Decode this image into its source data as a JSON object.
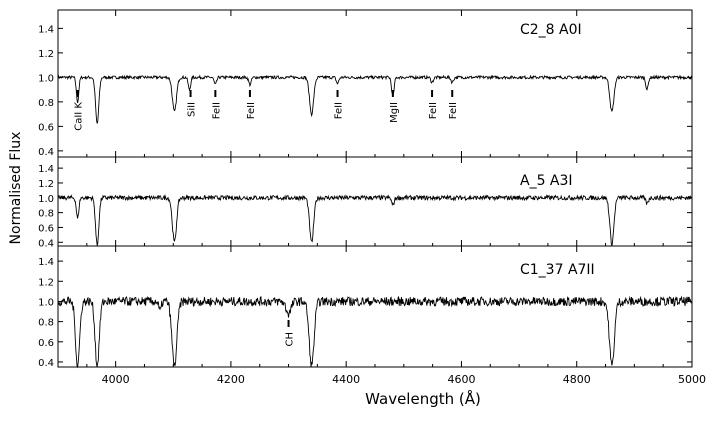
{
  "chart_data": {
    "type": "line",
    "xlabel": "Wavelength (Å)",
    "ylabel": "Normalised Flux",
    "xlim": [
      3900,
      5000
    ],
    "x_ticks": [
      "4000",
      "4200",
      "4400",
      "4600",
      "4800",
      "5000"
    ],
    "x_tick_values": [
      4000,
      4200,
      4400,
      4600,
      4800,
      5000
    ],
    "ylim": [
      0.35,
      1.6
    ],
    "y_ticks": [
      "0.4",
      "0.6",
      "0.8",
      "1.0",
      "1.2",
      "1.4"
    ],
    "y_tick_values": [
      0.4,
      0.6,
      0.8,
      1.0,
      1.2,
      1.4
    ],
    "panels": [
      {
        "label": "C2_8  A0I",
        "continuum": 1.0,
        "noise": 0.012,
        "lines": [
          [
            3934,
            0.8,
            3
          ],
          [
            3968,
            0.62,
            4
          ],
          [
            4102,
            0.72,
            5
          ],
          [
            4128,
            0.9,
            3
          ],
          [
            4173,
            0.94,
            3
          ],
          [
            4233,
            0.94,
            3
          ],
          [
            4340,
            0.7,
            5
          ],
          [
            4385,
            0.95,
            3
          ],
          [
            4481,
            0.84,
            3
          ],
          [
            4549,
            0.96,
            3
          ],
          [
            4584,
            0.96,
            3
          ],
          [
            4861,
            0.72,
            5
          ],
          [
            4922,
            0.9,
            3
          ]
        ],
        "annotations": [
          {
            "label": "CaII K",
            "x": 3934
          },
          {
            "label": "SiII",
            "x": 4130
          },
          {
            "label": "FeII",
            "x": 4173
          },
          {
            "label": "FeII",
            "x": 4233
          },
          {
            "label": "FeII",
            "x": 4385
          },
          {
            "label": "MgII",
            "x": 4481
          },
          {
            "label": "FeII",
            "x": 4549
          },
          {
            "label": "FeII",
            "x": 4584
          }
        ]
      },
      {
        "label": "A_5  A3I",
        "continuum": 1.0,
        "noise": 0.03,
        "lines": [
          [
            3934,
            0.72,
            3
          ],
          [
            3968,
            0.36,
            4
          ],
          [
            4102,
            0.4,
            5
          ],
          [
            4340,
            0.4,
            5
          ],
          [
            4481,
            0.9,
            3
          ],
          [
            4861,
            0.38,
            5
          ],
          [
            4922,
            0.92,
            3
          ]
        ],
        "annotations": []
      },
      {
        "label": "C1_37  A7II",
        "continuum": 1.0,
        "noise": 0.045,
        "lines": [
          [
            3934,
            0.36,
            5
          ],
          [
            3968,
            0.36,
            5
          ],
          [
            4102,
            0.36,
            6
          ],
          [
            4340,
            0.36,
            6
          ],
          [
            4300,
            0.88,
            6
          ],
          [
            4861,
            0.36,
            6
          ],
          [
            4077,
            0.9,
            3
          ]
        ],
        "annotations": [
          {
            "label": "CH",
            "x": 4300
          }
        ]
      }
    ]
  }
}
